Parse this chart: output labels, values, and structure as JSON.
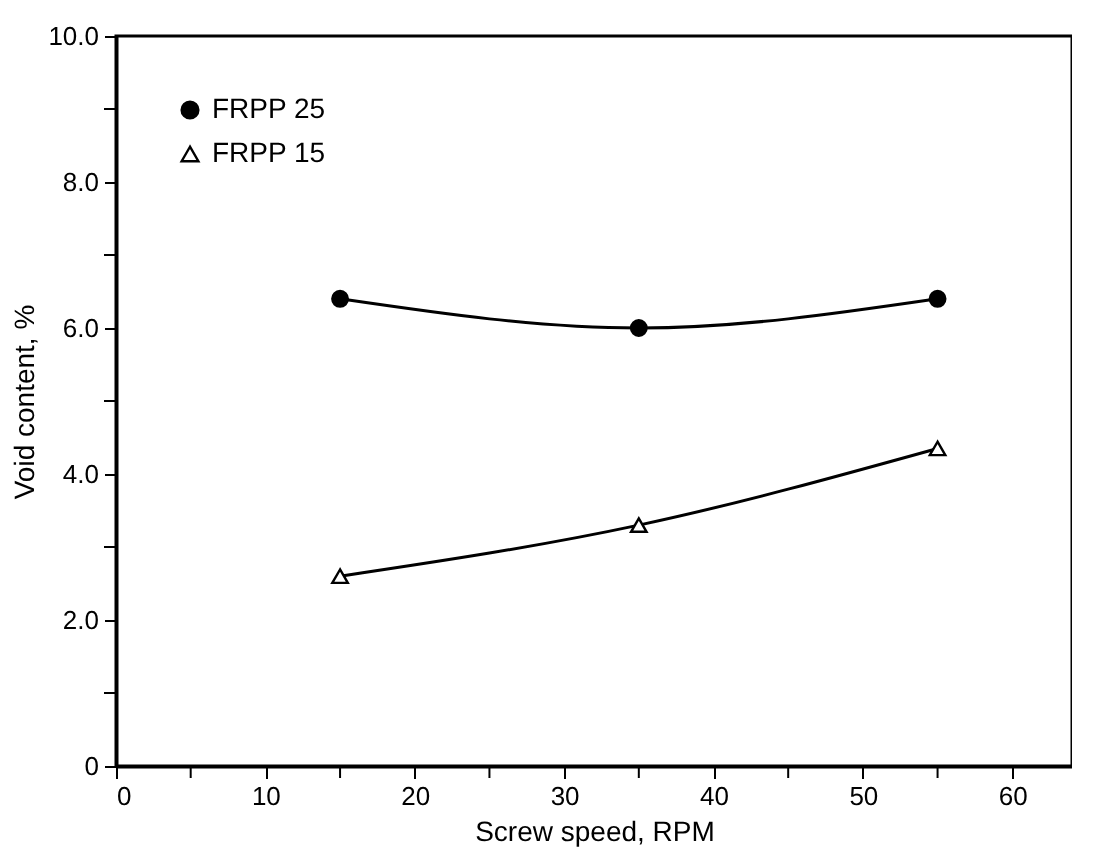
{
  "chart_data": {
    "type": "line",
    "xlabel": "Screw speed, RPM",
    "ylabel": "Void content, %",
    "x": [
      15,
      35,
      55
    ],
    "series": [
      {
        "name": "FRPP 25",
        "color": "#000000",
        "marker": "circle",
        "values": [
          6.4,
          6.0,
          6.4
        ]
      },
      {
        "name": "FRPP 15",
        "color": "#000000",
        "marker": "triangle",
        "values": [
          2.6,
          3.3,
          4.35
        ]
      }
    ],
    "xlim": [
      0,
      64
    ],
    "xticks": [
      0,
      {
        "value": 5,
        "label": null
      },
      10,
      {
        "value": 15,
        "label": null
      },
      20,
      {
        "value": 25,
        "label": null
      },
      30,
      {
        "value": 35,
        "label": null
      },
      40,
      {
        "value": 45,
        "label": null
      },
      50,
      {
        "value": 55,
        "label": null
      },
      60
    ],
    "ylim": [
      0,
      10
    ],
    "yticks": [
      0,
      {
        "value": 1,
        "label": null
      },
      {
        "value": 2,
        "label": "2.0"
      },
      {
        "value": 3,
        "label": null
      },
      {
        "value": 4,
        "label": "4.0"
      },
      {
        "value": 5,
        "label": null
      },
      {
        "value": 6,
        "label": "6.0"
      },
      {
        "value": 7,
        "label": null
      },
      {
        "value": 8,
        "label": "8.0"
      },
      {
        "value": 9,
        "label": null
      },
      {
        "value": 10,
        "label": "10.0"
      }
    ],
    "grid": false,
    "legend": "top left",
    "line_style": "solid"
  }
}
